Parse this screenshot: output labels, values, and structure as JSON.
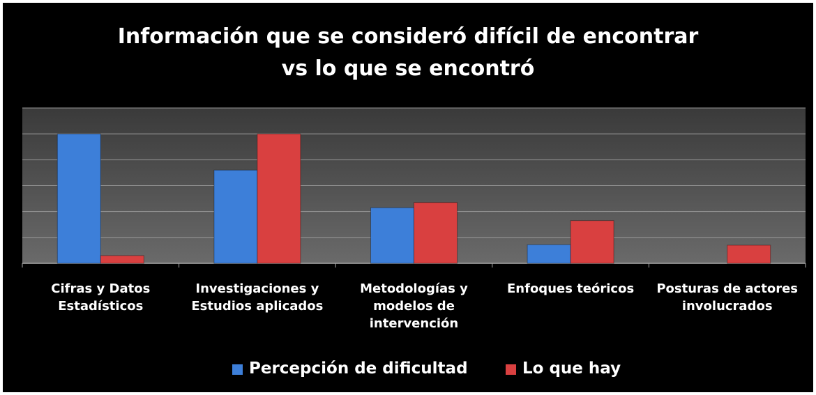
{
  "chart_data": {
    "type": "bar",
    "title": "Información que se consideró difícil de encontrar vs lo que se encontró",
    "categories": [
      "Cifras y Datos Estadísticos",
      "Investigaciones y Estudios aplicados",
      "Metodologías y modelos de intervención",
      "Enfoques teóricos",
      "Posturas de actores involucrados"
    ],
    "series": [
      {
        "name": "Percepción de dificultad",
        "color": "#3d7fd9",
        "values": [
          5.0,
          3.6,
          2.15,
          0.72,
          0
        ]
      },
      {
        "name": "Lo que hay",
        "color": "#d94040",
        "values": [
          0.3,
          5.0,
          2.35,
          1.65,
          0.7
        ]
      }
    ],
    "ylim": [
      0,
      6
    ],
    "yticks": [
      0,
      1,
      2,
      3,
      4,
      5,
      6
    ],
    "grid": true,
    "legend": "bottom"
  }
}
